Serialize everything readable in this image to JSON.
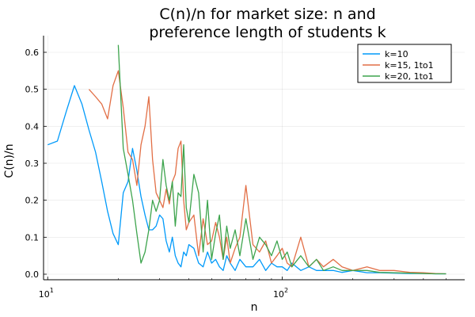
{
  "chart_data": {
    "type": "line",
    "title_lines": [
      "C(n)/n for market size: n and",
      "preference length of students k"
    ],
    "xlabel": "n",
    "ylabel": "C(n)/n",
    "x_scale": "log10",
    "xlim": [
      9.6,
      600
    ],
    "ylim": [
      -0.015,
      0.645
    ],
    "x_ticks": [
      {
        "value": 10,
        "base": "10",
        "exp": "1"
      },
      {
        "value": 100,
        "base": "10",
        "exp": "2"
      }
    ],
    "y_ticks": [
      0.0,
      0.1,
      0.2,
      0.3,
      0.4,
      0.5,
      0.6
    ],
    "y_tick_labels": [
      "0.0",
      "0.1",
      "0.2",
      "0.3",
      "0.4",
      "0.5",
      "0.6"
    ],
    "grid": true,
    "legend_position": "top-right",
    "series": [
      {
        "name": "k=10",
        "color": "#009AFA",
        "x": [
          10,
          11,
          12,
          13,
          14,
          15,
          16,
          17,
          18,
          19,
          20,
          21,
          22,
          23,
          24,
          25,
          26,
          27,
          28,
          29,
          30,
          31,
          32,
          33,
          34,
          35,
          36,
          37,
          38,
          39,
          40,
          42,
          44,
          46,
          48,
          50,
          52,
          54,
          56,
          58,
          60,
          63,
          66,
          70,
          75,
          80,
          85,
          90,
          95,
          100,
          105,
          110,
          120,
          130,
          140,
          150,
          165,
          180,
          200,
          230,
          260,
          300,
          350,
          400,
          450,
          500
        ],
        "y": [
          0.35,
          0.36,
          0.44,
          0.51,
          0.46,
          0.39,
          0.33,
          0.25,
          0.17,
          0.11,
          0.08,
          0.22,
          0.25,
          0.34,
          0.28,
          0.21,
          0.16,
          0.12,
          0.12,
          0.13,
          0.16,
          0.15,
          0.09,
          0.06,
          0.1,
          0.05,
          0.03,
          0.02,
          0.06,
          0.05,
          0.08,
          0.07,
          0.03,
          0.02,
          0.06,
          0.03,
          0.04,
          0.02,
          0.01,
          0.05,
          0.03,
          0.01,
          0.04,
          0.02,
          0.02,
          0.04,
          0.01,
          0.03,
          0.02,
          0.02,
          0.01,
          0.03,
          0.01,
          0.02,
          0.01,
          0.01,
          0.01,
          0.005,
          0.01,
          0.004,
          0.004,
          0.003,
          0.002,
          0.002,
          0.001,
          0.001
        ]
      },
      {
        "name": "k=15, 1to1",
        "color": "#E26F46",
        "x": [
          15,
          16,
          17,
          18,
          19,
          20,
          21,
          22,
          23,
          24,
          25,
          26,
          27,
          28,
          29,
          30,
          31,
          32,
          33,
          34,
          35,
          36,
          37,
          38,
          39,
          40,
          42,
          44,
          46,
          48,
          50,
          52,
          54,
          56,
          58,
          60,
          63,
          66,
          70,
          75,
          80,
          85,
          90,
          95,
          100,
          105,
          110,
          120,
          130,
          140,
          150,
          165,
          180,
          200,
          230,
          260,
          300,
          350,
          400,
          450,
          500
        ],
        "y": [
          0.5,
          0.48,
          0.46,
          0.42,
          0.51,
          0.55,
          0.45,
          0.33,
          0.31,
          0.24,
          0.35,
          0.4,
          0.48,
          0.31,
          0.22,
          0.2,
          0.18,
          0.23,
          0.19,
          0.25,
          0.27,
          0.34,
          0.36,
          0.2,
          0.12,
          0.14,
          0.16,
          0.05,
          0.15,
          0.08,
          0.09,
          0.14,
          0.1,
          0.04,
          0.1,
          0.03,
          0.07,
          0.1,
          0.24,
          0.08,
          0.06,
          0.09,
          0.03,
          0.05,
          0.07,
          0.03,
          0.02,
          0.1,
          0.02,
          0.04,
          0.02,
          0.04,
          0.02,
          0.01,
          0.02,
          0.01,
          0.01,
          0.005,
          0.004,
          0.002,
          0.001
        ]
      },
      {
        "name": "k=20, 1to1",
        "color": "#3DA44D",
        "x": [
          20,
          21,
          22,
          23,
          24,
          25,
          26,
          27,
          28,
          29,
          30,
          31,
          32,
          33,
          34,
          35,
          36,
          37,
          38,
          39,
          40,
          42,
          44,
          46,
          48,
          50,
          52,
          54,
          56,
          58,
          60,
          63,
          66,
          70,
          75,
          80,
          85,
          90,
          95,
          100,
          105,
          110,
          120,
          130,
          140,
          150,
          165,
          180,
          200,
          230,
          260,
          300,
          350,
          400,
          450,
          500
        ],
        "y": [
          0.62,
          0.34,
          0.27,
          0.2,
          0.11,
          0.03,
          0.06,
          0.12,
          0.2,
          0.17,
          0.2,
          0.31,
          0.24,
          0.2,
          0.25,
          0.13,
          0.22,
          0.21,
          0.35,
          0.18,
          0.14,
          0.27,
          0.22,
          0.06,
          0.2,
          0.04,
          0.11,
          0.16,
          0.04,
          0.13,
          0.07,
          0.12,
          0.05,
          0.15,
          0.04,
          0.1,
          0.08,
          0.05,
          0.09,
          0.04,
          0.06,
          0.02,
          0.05,
          0.02,
          0.04,
          0.01,
          0.02,
          0.01,
          0.01,
          0.01,
          0.005,
          0.004,
          0.003,
          0.002,
          0.001,
          0.001
        ]
      }
    ]
  }
}
